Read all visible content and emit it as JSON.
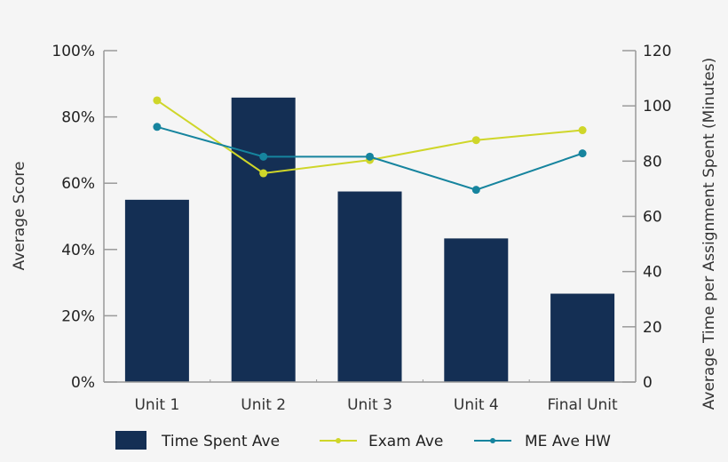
{
  "chart_data": {
    "type": "bar+line",
    "title": "",
    "categories": [
      "Unit 1",
      "Unit 2",
      "Unit 3",
      "Unit 4",
      "Final Unit"
    ],
    "series": [
      {
        "name": "Time Spent Ave",
        "type": "bar",
        "axis": "right",
        "color": "#142f54",
        "values": [
          66,
          103,
          69,
          52,
          32
        ]
      },
      {
        "name": "Exam Ave",
        "type": "line",
        "axis": "left",
        "color": "#cfd629",
        "values": [
          85,
          63,
          67,
          73,
          76
        ]
      },
      {
        "name": "ME Ave HW",
        "type": "line",
        "axis": "left",
        "color": "#16849e",
        "values": [
          77,
          68,
          68,
          58,
          69
        ]
      }
    ],
    "left_axis": {
      "label": "Average Score",
      "ticks": [
        "0%",
        "20%",
        "40%",
        "60%",
        "80%",
        "100%"
      ],
      "range": [
        0,
        100
      ]
    },
    "right_axis": {
      "label": "Average Time per Assignment Spent (Minutes)",
      "ticks": [
        "0",
        "20",
        "40",
        "60",
        "80",
        "100",
        "120"
      ],
      "range": [
        0,
        120
      ]
    },
    "grid": false,
    "legend_position": "bottom"
  }
}
